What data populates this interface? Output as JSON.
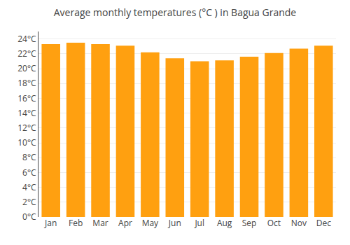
{
  "chart_data": {
    "type": "bar",
    "title": "Average monthly temperatures (°C ) in Bagua Grande",
    "categories": [
      "Jan",
      "Feb",
      "Mar",
      "Apr",
      "May",
      "Jun",
      "Jul",
      "Aug",
      "Sep",
      "Oct",
      "Nov",
      "Dec"
    ],
    "values": [
      23.3,
      23.5,
      23.3,
      23.1,
      22.2,
      21.4,
      21.0,
      21.1,
      21.6,
      22.1,
      22.7,
      23.1
    ],
    "color": "#FFA010",
    "ylim": [
      0,
      25
    ],
    "yticks": [
      {
        "value": 0,
        "label": "0°C"
      },
      {
        "value": 2,
        "label": "2°C"
      },
      {
        "value": 4,
        "label": "4°C"
      },
      {
        "value": 6,
        "label": "6°C"
      },
      {
        "value": 8,
        "label": "8°C"
      },
      {
        "value": 10,
        "label": "10°C"
      },
      {
        "value": 12,
        "label": "12°C"
      },
      {
        "value": 14,
        "label": "14°C"
      },
      {
        "value": 16,
        "label": "16°C"
      },
      {
        "value": 18,
        "label": "18°C"
      },
      {
        "value": 20,
        "label": "20°C"
      },
      {
        "value": 22,
        "label": "22°C"
      },
      {
        "value": 24,
        "label": "24°C"
      }
    ],
    "grid": true
  }
}
